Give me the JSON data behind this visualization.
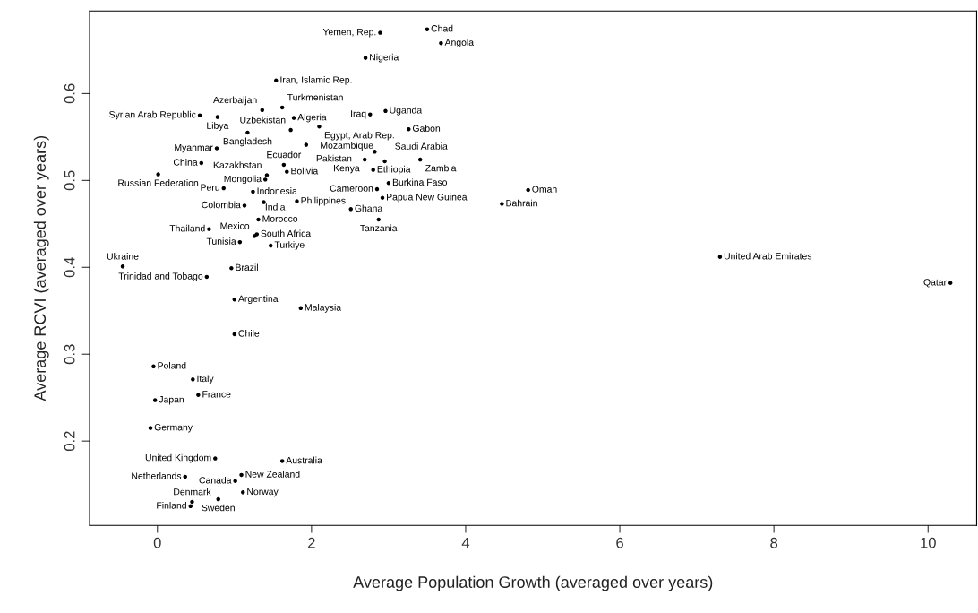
{
  "chart_data": {
    "type": "scatter",
    "xlabel": "Average Population Growth (averaged over years)",
    "ylabel": "Average RCVI (averaged over years)",
    "xlim": [
      -0.88,
      10.63
    ],
    "ylim": [
      0.103,
      0.695
    ],
    "xticks": [
      0,
      2,
      4,
      6,
      8,
      10
    ],
    "yticks": [
      0.2,
      0.3,
      0.4,
      0.5,
      0.6
    ],
    "grid": false,
    "marker": "circle",
    "series": [
      {
        "color": "#000000",
        "x": [
          2.89,
          3.5,
          3.68,
          2.7,
          1.54,
          0.55,
          0.78,
          1.36,
          1.62,
          1.77,
          2.76,
          2.96,
          2.1,
          1.73,
          1.17,
          3.26,
          1.93,
          0.77,
          2.82,
          2.69,
          2.95,
          3.41,
          2.8,
          0.57,
          0.01,
          1.64,
          1.68,
          1.42,
          1.4,
          0.86,
          1.24,
          1.13,
          1.38,
          1.81,
          3.0,
          2.85,
          2.92,
          2.51,
          2.87,
          4.81,
          4.47,
          1.31,
          0.67,
          1.29,
          1.26,
          1.07,
          1.47,
          -0.45,
          0.96,
          0.64,
          7.3,
          10.29,
          1.0,
          1.86,
          1.0,
          -0.05,
          0.46,
          -0.03,
          0.53,
          -0.09,
          0.75,
          1.62,
          0.36,
          1.09,
          1.01,
          1.11,
          0.79,
          0.45,
          0.43
        ],
        "values": [
          0.67,
          0.674,
          0.658,
          0.641,
          0.615,
          0.575,
          0.573,
          0.581,
          0.584,
          0.572,
          0.576,
          0.58,
          0.562,
          0.558,
          0.555,
          0.559,
          0.541,
          0.537,
          0.533,
          0.524,
          0.522,
          0.524,
          0.512,
          0.52,
          0.507,
          0.518,
          0.51,
          0.506,
          0.501,
          0.491,
          0.487,
          0.471,
          0.475,
          0.476,
          0.497,
          0.49,
          0.48,
          0.467,
          0.455,
          0.489,
          0.473,
          0.455,
          0.444,
          0.438,
          0.436,
          0.429,
          0.425,
          0.401,
          0.399,
          0.389,
          0.412,
          0.382,
          0.363,
          0.353,
          0.323,
          0.286,
          0.271,
          0.247,
          0.253,
          0.215,
          0.18,
          0.177,
          0.159,
          0.161,
          0.154,
          0.141,
          0.133,
          0.13,
          0.125
        ],
        "value_labels": [
          "Yemen, Rep.",
          "Chad",
          "Angola",
          "Nigeria",
          "Iran, Islamic Rep.",
          "Syrian Arab Republic",
          "Libya",
          "Azerbaijan",
          "Turkmenistan",
          "Algeria",
          "Iraq",
          "Uganda",
          "Egypt, Arab Rep.",
          "Uzbekistan",
          "Bangladesh",
          "Gabon",
          "Pakistan",
          "Myanmar",
          "Mozambique",
          "Kenya",
          "Saudi Arabia",
          "Zambia",
          "Ethiopia",
          "China",
          "Russian Federation",
          "Ecuador",
          "Bolivia",
          "Kazakhstan",
          "Mongolia",
          "Peru",
          "Indonesia",
          "Colombia",
          "India",
          "Philippines",
          "Burkina Faso",
          "Cameroon",
          "Papua New Guinea",
          "Ghana",
          "Tanzania",
          "Oman",
          "Bahrain",
          "Morocco",
          "Thailand",
          "South Africa",
          "Mexico",
          "Tunisia",
          "Turkiye",
          "Ukraine",
          "Brazil",
          "Trinidad and Tobago",
          "United Arab Emirates",
          "Qatar",
          "Argentina",
          "Malaysia",
          "Chile",
          "Poland",
          "Italy",
          "Japan",
          "France",
          "Germany",
          "United Kingdom",
          "Australia",
          "Netherlands",
          "New Zealand",
          "Canada",
          "Norway",
          "Sweden",
          "Denmark",
          "Finland"
        ]
      }
    ]
  }
}
